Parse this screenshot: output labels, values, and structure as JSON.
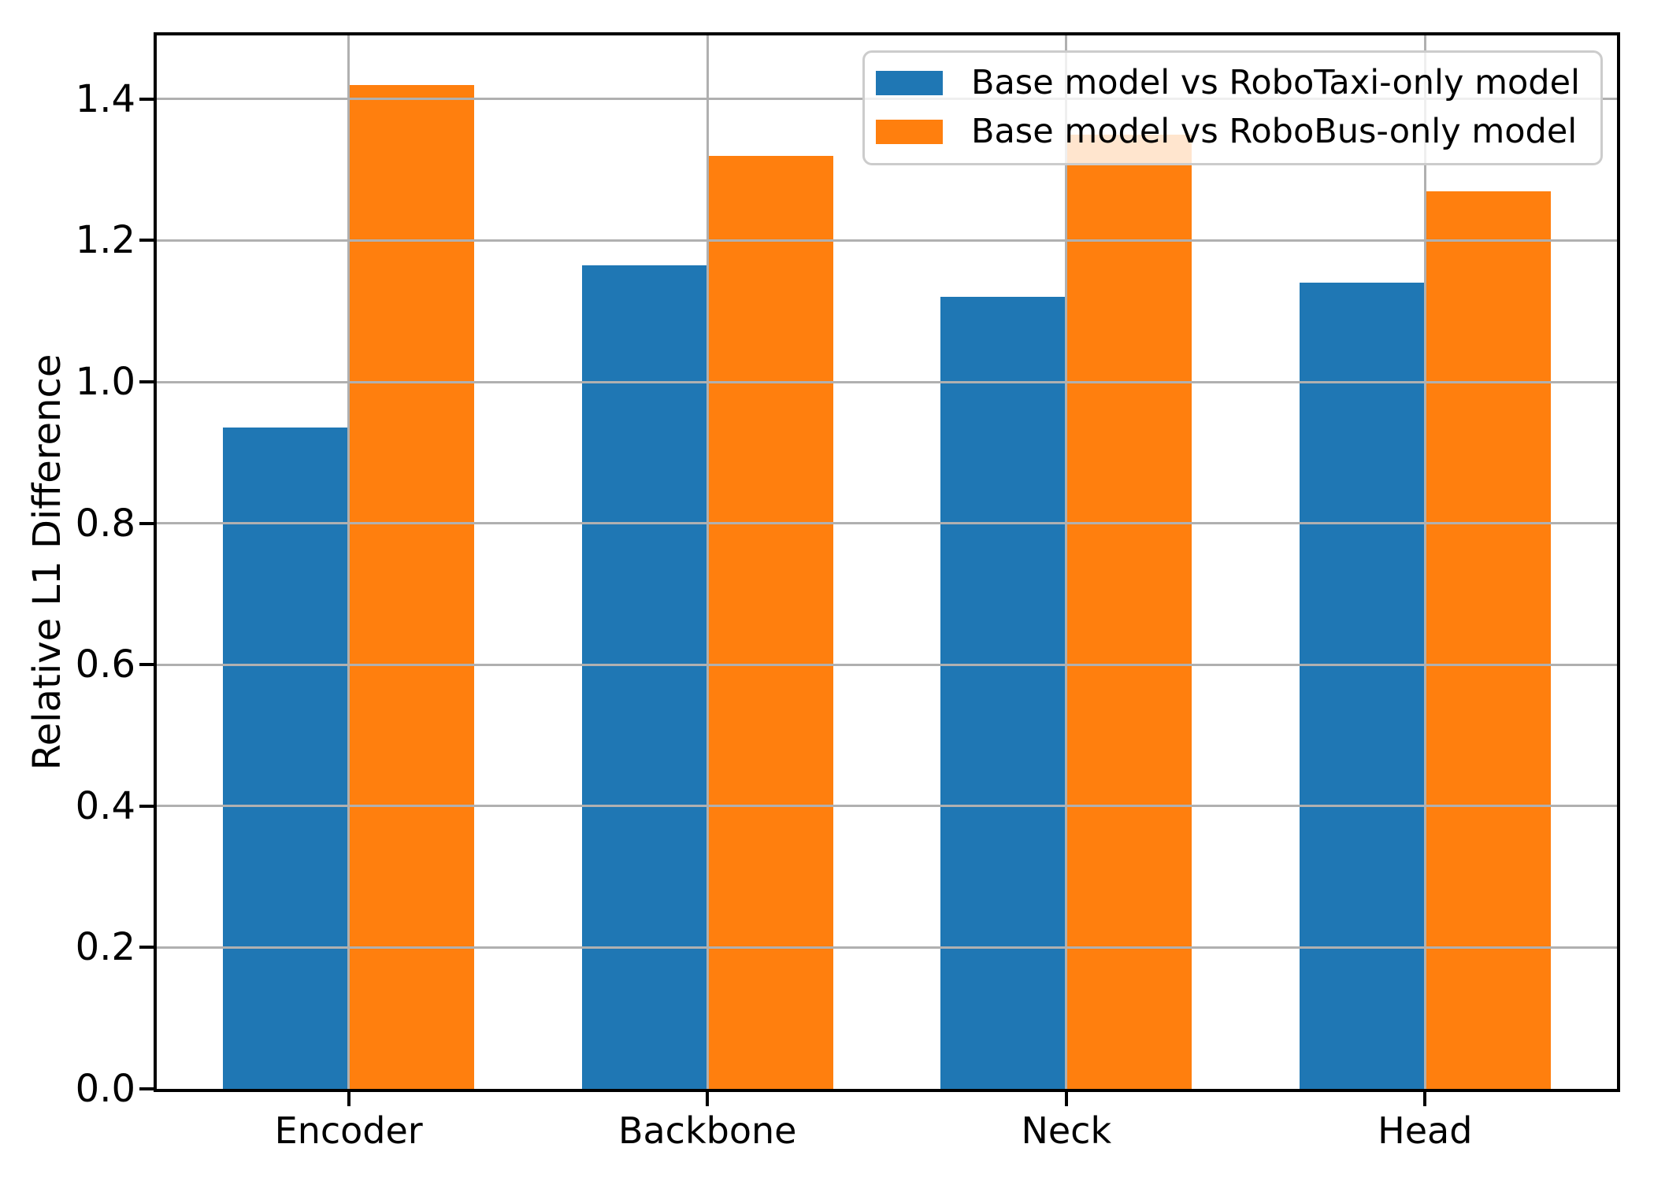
{
  "chart_data": {
    "type": "bar",
    "title": "",
    "xlabel": "",
    "ylabel": "Relative L1 Difference",
    "categories": [
      "Encoder",
      "Backbone",
      "Neck",
      "Head"
    ],
    "series": [
      {
        "name": "Base model vs RoboTaxi-only model",
        "color": "#1f77b4",
        "values": [
          0.935,
          1.165,
          1.12,
          1.14
        ]
      },
      {
        "name": "Base model vs RoboBus-only model",
        "color": "#ff7f0e",
        "values": [
          1.42,
          1.32,
          1.35,
          1.27
        ]
      }
    ],
    "ylim": [
      0,
      1.49
    ],
    "yticks": [
      0.0,
      0.2,
      0.4,
      0.6,
      0.8,
      1.0,
      1.2,
      1.4
    ],
    "ytick_labels": [
      "0.0",
      "0.2",
      "0.4",
      "0.6",
      "0.8",
      "1.0",
      "1.2",
      "1.4"
    ],
    "bar_width_ratio": 0.35,
    "grid": true,
    "grid_axis": "both",
    "legend_position": "upper right"
  },
  "colors": {
    "grid": "#b0b0b0",
    "spine": "#000000",
    "legend_border": "#cccccc",
    "background": "#ffffff",
    "text": "#000000"
  }
}
